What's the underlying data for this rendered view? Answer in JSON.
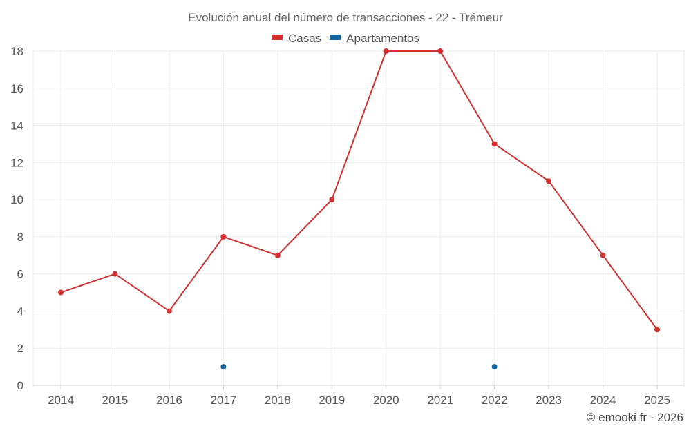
{
  "chart_data": {
    "type": "line",
    "title": "Evolución anual del número de transacciones - 22 - Trémeur",
    "categories": [
      "2014",
      "2015",
      "2016",
      "2017",
      "2018",
      "2019",
      "2020",
      "2021",
      "2022",
      "2023",
      "2024",
      "2025"
    ],
    "ylim": [
      0,
      18
    ],
    "yticks": [
      0,
      2,
      4,
      6,
      8,
      10,
      12,
      14,
      16,
      18
    ],
    "grid": true,
    "legend_position": "top-center",
    "series": [
      {
        "name": "Casas",
        "color": "#d32f2f",
        "style": "line-markers",
        "values": [
          5,
          6,
          4,
          8,
          7,
          10,
          18,
          18,
          13,
          11,
          7,
          3
        ]
      },
      {
        "name": "Apartamentos",
        "color": "#1565a0",
        "style": "markers",
        "values": [
          null,
          null,
          null,
          1,
          null,
          null,
          null,
          null,
          1,
          null,
          null,
          null
        ]
      }
    ]
  },
  "credit": "© emooki.fr - 2026"
}
